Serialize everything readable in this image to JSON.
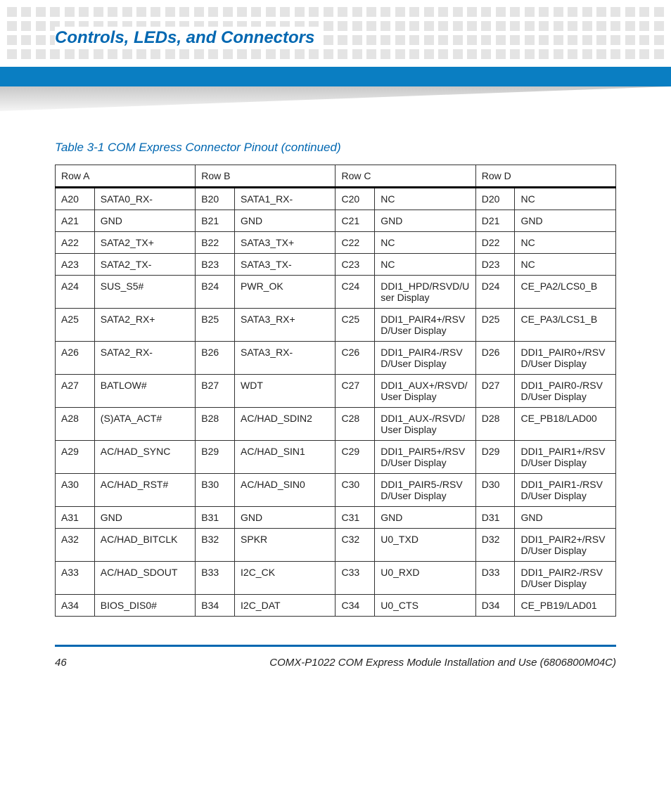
{
  "header": {
    "title": "Controls, LEDs, and Connectors",
    "title_color": "#0067b1",
    "blue_bar_color": "#0a7ec2",
    "dot_color": "#e4e4e4"
  },
  "caption": "Table 3-1 COM Express Connector Pinout (continued)",
  "table": {
    "headers": [
      "Row A",
      "Row B",
      "Row C",
      "Row D"
    ],
    "rows": [
      {
        "a_pin": "A20",
        "a_sig": "SATA0_RX-",
        "b_pin": "B20",
        "b_sig": "SATA1_RX-",
        "c_pin": "C20",
        "c_sig": "NC",
        "d_pin": "D20",
        "d_sig": "NC"
      },
      {
        "a_pin": "A21",
        "a_sig": "GND",
        "b_pin": "B21",
        "b_sig": "GND",
        "c_pin": "C21",
        "c_sig": "GND",
        "d_pin": "D21",
        "d_sig": "GND"
      },
      {
        "a_pin": "A22",
        "a_sig": "SATA2_TX+",
        "b_pin": "B22",
        "b_sig": "SATA3_TX+",
        "c_pin": "C22",
        "c_sig": "NC",
        "d_pin": "D22",
        "d_sig": "NC"
      },
      {
        "a_pin": "A23",
        "a_sig": "SATA2_TX-",
        "b_pin": "B23",
        "b_sig": "SATA3_TX-",
        "c_pin": "C23",
        "c_sig": "NC",
        "d_pin": "D23",
        "d_sig": "NC"
      },
      {
        "a_pin": "A24",
        "a_sig": "SUS_S5#",
        "b_pin": "B24",
        "b_sig": "PWR_OK",
        "c_pin": "C24",
        "c_sig": "DDI1_HPD/RSVD/User Display",
        "d_pin": "D24",
        "d_sig": "CE_PA2/LCS0_B"
      },
      {
        "a_pin": "A25",
        "a_sig": "SATA2_RX+",
        "b_pin": "B25",
        "b_sig": "SATA3_RX+",
        "c_pin": "C25",
        "c_sig": "DDI1_PAIR4+/RSVD/User Display",
        "d_pin": "D25",
        "d_sig": "CE_PA3/LCS1_B"
      },
      {
        "a_pin": "A26",
        "a_sig": "SATA2_RX-",
        "b_pin": "B26",
        "b_sig": "SATA3_RX-",
        "c_pin": "C26",
        "c_sig": "DDI1_PAIR4-/RSVD/User Display",
        "d_pin": "D26",
        "d_sig": "DDI1_PAIR0+/RSVD/User Display"
      },
      {
        "a_pin": "A27",
        "a_sig": "BATLOW#",
        "b_pin": "B27",
        "b_sig": "WDT",
        "c_pin": "C27",
        "c_sig": "DDI1_AUX+/RSVD/User Display",
        "d_pin": "D27",
        "d_sig": "DDI1_PAIR0-/RSVD/User Display"
      },
      {
        "a_pin": "A28",
        "a_sig": "(S)ATA_ACT#",
        "b_pin": "B28",
        "b_sig": "AC/HAD_SDIN2",
        "c_pin": "C28",
        "c_sig": "DDI1_AUX-/RSVD/User Display",
        "d_pin": "D28",
        "d_sig": "CE_PB18/LAD00"
      },
      {
        "a_pin": "A29",
        "a_sig": "AC/HAD_SYNC",
        "b_pin": "B29",
        "b_sig": "AC/HAD_SIN1",
        "c_pin": "C29",
        "c_sig": "DDI1_PAIR5+/RSVD/User Display",
        "d_pin": "D29",
        "d_sig": "DDI1_PAIR1+/RSVD/User Display"
      },
      {
        "a_pin": "A30",
        "a_sig": "AC/HAD_RST#",
        "b_pin": "B30",
        "b_sig": "AC/HAD_SIN0",
        "c_pin": "C30",
        "c_sig": "DDI1_PAIR5-/RSVD/User Display",
        "d_pin": "D30",
        "d_sig": "DDI1_PAIR1-/RSVD/User Display"
      },
      {
        "a_pin": "A31",
        "a_sig": "GND",
        "b_pin": "B31",
        "b_sig": "GND",
        "c_pin": "C31",
        "c_sig": "GND",
        "d_pin": "D31",
        "d_sig": "GND"
      },
      {
        "a_pin": "A32",
        "a_sig": "AC/HAD_BITCLK",
        "b_pin": "B32",
        "b_sig": "SPKR",
        "c_pin": "C32",
        "c_sig": "U0_TXD",
        "d_pin": "D32",
        "d_sig": "DDI1_PAIR2+/RSVD/User Display"
      },
      {
        "a_pin": "A33",
        "a_sig": "AC/HAD_SDOUT",
        "b_pin": "B33",
        "b_sig": "I2C_CK",
        "c_pin": "C33",
        "c_sig": "U0_RXD",
        "d_pin": "D33",
        "d_sig": "DDI1_PAIR2-/RSVD/User Display"
      },
      {
        "a_pin": "A34",
        "a_sig": "BIOS_DIS0#",
        "b_pin": "B34",
        "b_sig": "I2C_DAT",
        "c_pin": "C34",
        "c_sig": "U0_CTS",
        "d_pin": "D34",
        "d_sig": "CE_PB19/LAD01"
      }
    ]
  },
  "footer": {
    "page_number": "46",
    "doc_title": "COMX-P1022 COM Express Module Installation and Use (6806800M04C)"
  }
}
